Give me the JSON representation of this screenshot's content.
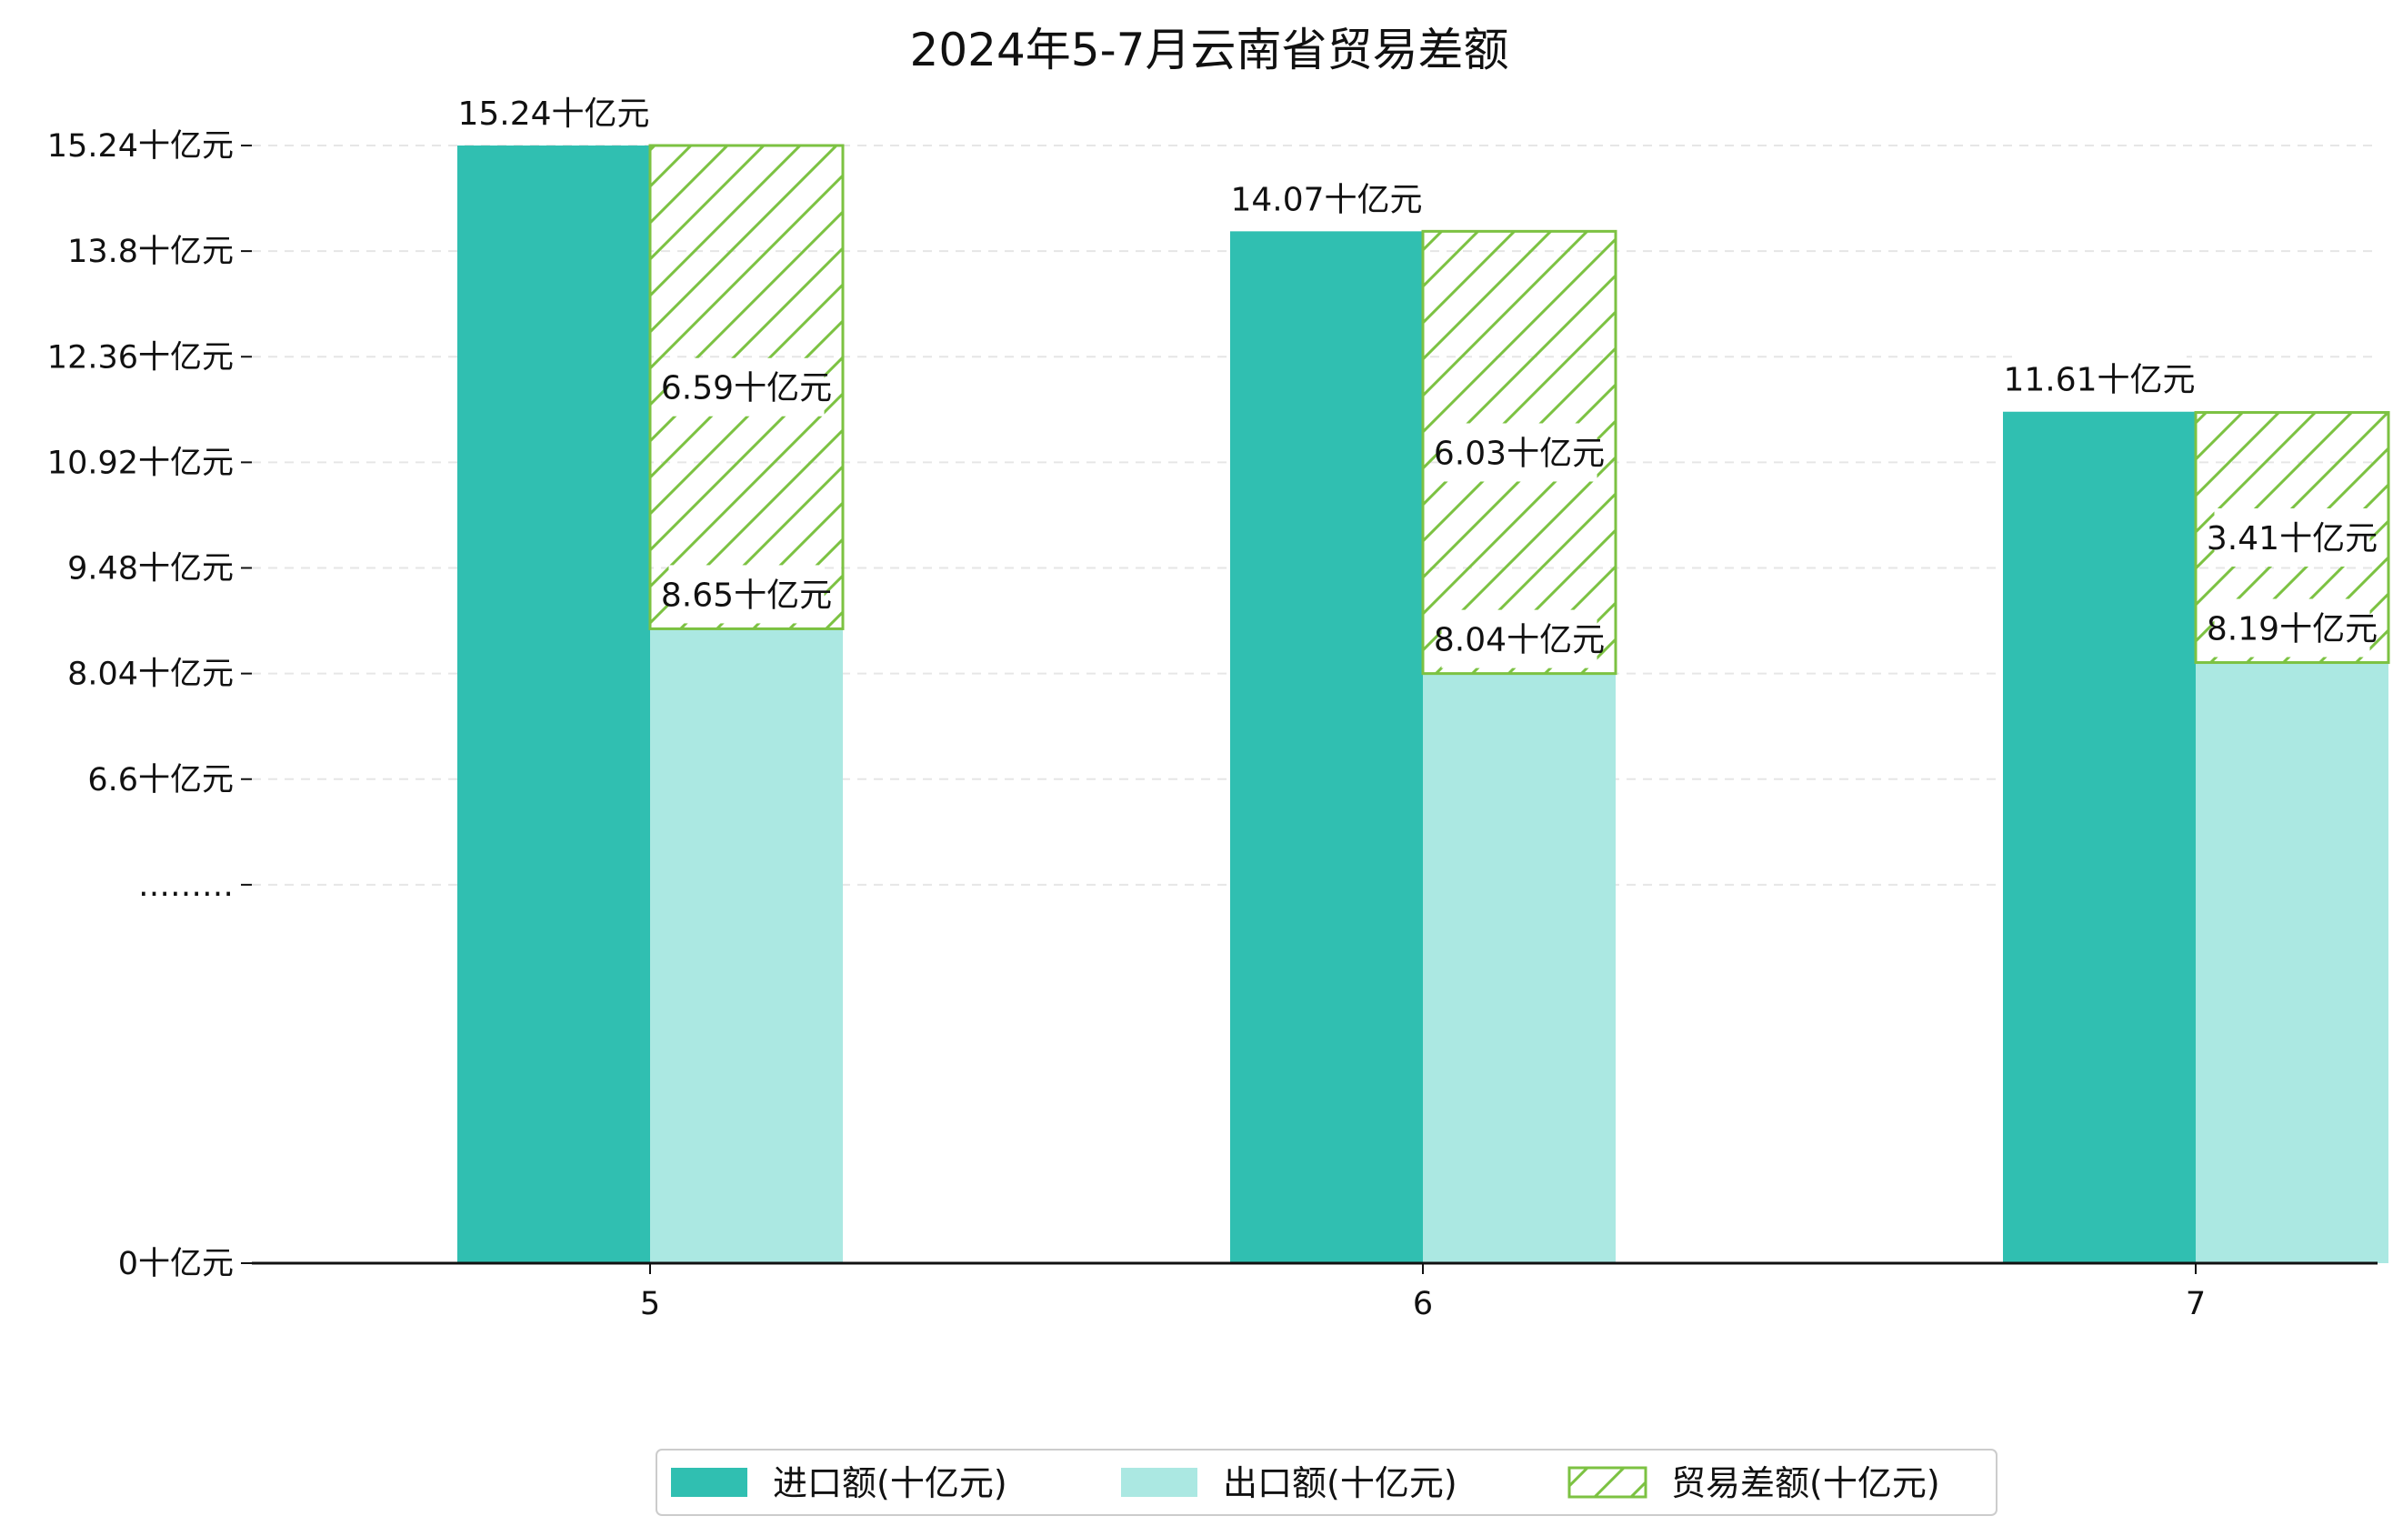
{
  "chart_data": {
    "type": "bar",
    "title": "2024年5-7月云南省贸易差额",
    "categories": [
      "5",
      "6",
      "7"
    ],
    "unit": "十亿元",
    "series": [
      {
        "name": "进口额(十亿元)",
        "values": [
          15.24,
          14.07,
          11.61
        ],
        "labels": [
          "15.24十亿元",
          "14.07十亿元",
          "11.61十亿元"
        ],
        "color": "#30bfb1"
      },
      {
        "name": "出口额(十亿元)",
        "values": [
          8.65,
          8.04,
          8.19
        ],
        "labels": [
          "8.65十亿元",
          "8.04十亿元",
          "8.19十亿元"
        ],
        "color": "#abe8e2"
      },
      {
        "name": "贸易差额(十亿元)",
        "values": [
          6.59,
          6.03,
          3.41
        ],
        "labels": [
          "6.59十亿元",
          "6.03十亿元",
          "3.41十亿元"
        ],
        "color": "#7cc242"
      }
    ],
    "yticks": [
      {
        "value": 0,
        "label": "0十亿元"
      },
      {
        "value": 5.16,
        "label": "………"
      },
      {
        "value": 6.6,
        "label": "6.6十亿元"
      },
      {
        "value": 8.04,
        "label": "8.04十亿元"
      },
      {
        "value": 9.48,
        "label": "9.48十亿元"
      },
      {
        "value": 10.92,
        "label": "10.92十亿元"
      },
      {
        "value": 12.36,
        "label": "12.36十亿元"
      },
      {
        "value": 13.8,
        "label": "13.8十亿元"
      },
      {
        "value": 15.24,
        "label": "15.24十亿元"
      }
    ],
    "ylim": [
      0,
      15.24
    ],
    "grid": true,
    "legend_position": "bottom"
  }
}
